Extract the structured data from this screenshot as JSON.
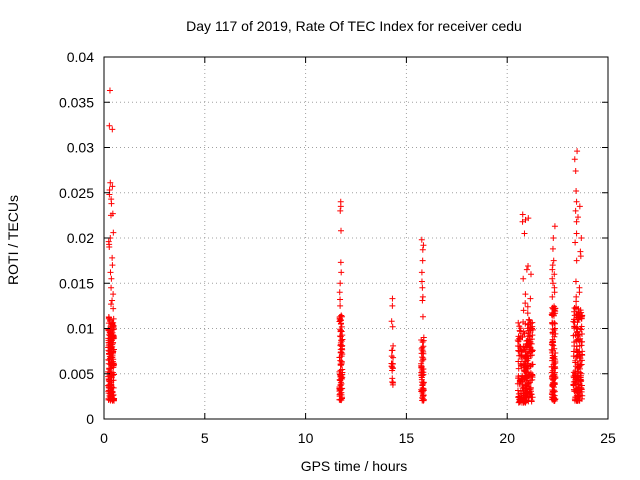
{
  "chart_data": {
    "type": "scatter",
    "title": "Day 117 of 2019, Rate Of TEC Index for receiver cedu",
    "xlabel": "GPS time / hours",
    "ylabel": "ROTI / TECUs",
    "xlim": [
      0,
      25
    ],
    "ylim": [
      0,
      0.04
    ],
    "x_ticks": [
      0,
      5,
      10,
      15,
      20,
      25
    ],
    "x_tick_labels": [
      "0",
      "5",
      "10",
      "15",
      "20",
      "25"
    ],
    "y_ticks": [
      0,
      0.005,
      0.01,
      0.015,
      0.02,
      0.025,
      0.03,
      0.035,
      0.04
    ],
    "y_tick_labels": [
      "0",
      "0.005",
      "0.01",
      "0.015",
      "0.02",
      "0.025",
      "0.03",
      "0.035",
      "0.04"
    ],
    "grid": true,
    "marker": "+",
    "marker_color": "#ff0000",
    "grid_color": "#a0a0a0",
    "clusters": [
      {
        "x_center": 0.35,
        "x_spread": 0.3,
        "y_min": 0.002,
        "y_max": 0.0115,
        "n_dense": 170,
        "extra_y": [
          0.0363,
          0.0324,
          0.032,
          0.0261,
          0.0257,
          0.0253,
          0.0248,
          0.0243,
          0.0238,
          0.0227,
          0.0225,
          0.0206,
          0.02,
          0.0196,
          0.0193,
          0.019,
          0.0178,
          0.017,
          0.0162,
          0.0155,
          0.0145,
          0.0138,
          0.0131,
          0.0127,
          0.0122
        ]
      },
      {
        "x_center": 11.75,
        "x_spread": 0.16,
        "y_min": 0.002,
        "y_max": 0.0115,
        "n_dense": 90,
        "extra_y": [
          0.024,
          0.0235,
          0.023,
          0.0208,
          0.0173,
          0.0162,
          0.015,
          0.014,
          0.0132,
          0.0125
        ]
      },
      {
        "x_center": 14.3,
        "x_spread": 0.08,
        "y_min": 0.0035,
        "y_max": 0.0085,
        "n_dense": 18,
        "extra_y": [
          0.0133,
          0.0125,
          0.0108,
          0.0102
        ]
      },
      {
        "x_center": 15.8,
        "x_spread": 0.14,
        "y_min": 0.002,
        "y_max": 0.009,
        "n_dense": 60,
        "extra_y": [
          0.0198,
          0.0192,
          0.0187,
          0.0175,
          0.0162,
          0.0152,
          0.0145,
          0.0135,
          0.0131,
          0.0113
        ]
      },
      {
        "x_center": 20.9,
        "x_spread": 0.75,
        "y_min": 0.0018,
        "y_max": 0.011,
        "n_dense": 240,
        "extra_y": [
          0.0226,
          0.0222,
          0.022,
          0.0218,
          0.0205,
          0.0169,
          0.0165,
          0.016,
          0.0155,
          0.0138,
          0.0133,
          0.0128,
          0.0124,
          0.012,
          0.0117
        ]
      },
      {
        "x_center": 22.3,
        "x_spread": 0.18,
        "y_min": 0.002,
        "y_max": 0.0125,
        "n_dense": 120,
        "extra_y": [
          0.0213,
          0.02,
          0.0188,
          0.0175,
          0.017,
          0.0165,
          0.016,
          0.0155,
          0.015,
          0.0145,
          0.014,
          0.0135
        ]
      },
      {
        "x_center": 23.5,
        "x_spread": 0.45,
        "y_min": 0.002,
        "y_max": 0.0125,
        "n_dense": 170,
        "extra_y": [
          0.0296,
          0.0287,
          0.0274,
          0.0252,
          0.024,
          0.0235,
          0.023,
          0.0223,
          0.0218,
          0.0205,
          0.02,
          0.0195,
          0.0185,
          0.018,
          0.0175,
          0.0152,
          0.0145,
          0.014,
          0.0135,
          0.013
        ]
      }
    ]
  }
}
